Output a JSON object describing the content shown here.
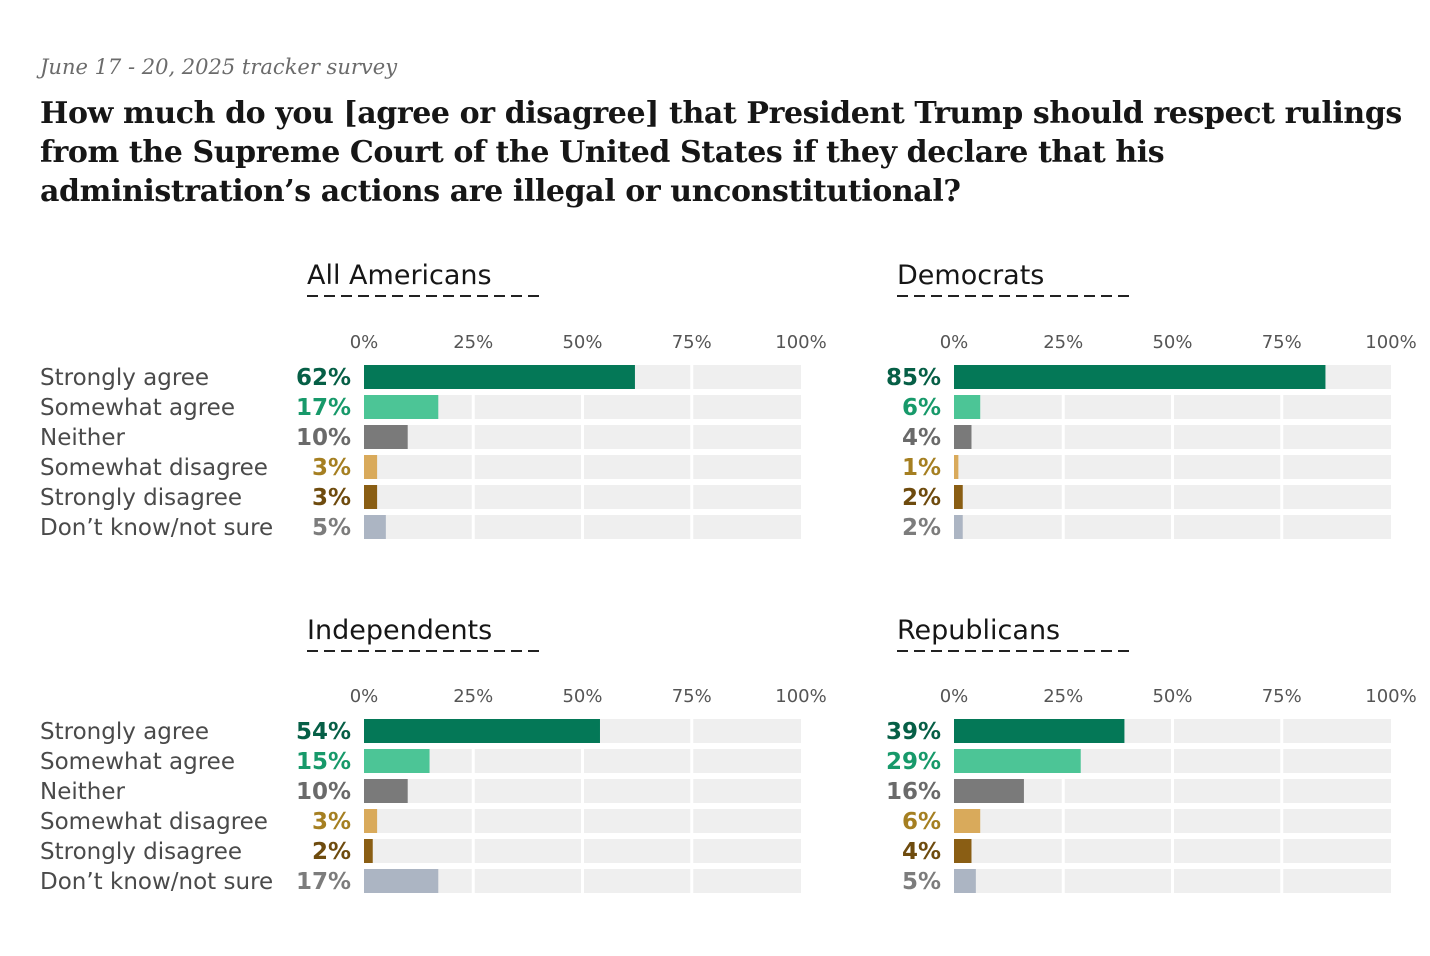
{
  "header": {
    "survey_date": "June 17 - 20, 2025 tracker survey",
    "question": "How much do you [agree or disagree] that President Trump should respect rulings from the Supreme Court of the United States if they declare that his administration’s actions are illegal or unconstitutional?"
  },
  "colors": {
    "Strongly agree": "#047857",
    "Somewhat agree": "#4cc596",
    "Neither": "#7a7a7a",
    "Somewhat disagree": "#d9aa5b",
    "Strongly disagree": "#8a5e14",
    "Don’t know/not sure": "#acb5c3",
    "track": "#efefef"
  },
  "label_colors": {
    "Strongly agree": "#065f46",
    "Somewhat agree": "#17996a",
    "Neither": "#6a6a6a",
    "Somewhat disagree": "#a57f21",
    "Strongly disagree": "#6e4b0e",
    "Don’t know/not sure": "#7c7c7c"
  },
  "chart_data": [
    {
      "type": "bar",
      "orientation": "horizontal",
      "title": "All Americans",
      "categories": [
        "Strongly agree",
        "Somewhat agree",
        "Neither",
        "Somewhat disagree",
        "Strongly disagree",
        "Don’t know/not sure"
      ],
      "values": [
        62,
        17,
        10,
        3,
        3,
        5
      ],
      "value_labels": [
        "62%",
        "17%",
        "10%",
        "3%",
        "3%",
        "5%"
      ],
      "xlim": [
        0,
        100
      ],
      "xticks": [
        "0%",
        "25%",
        "50%",
        "75%",
        "100%"
      ],
      "xtick_values": [
        0,
        25,
        50,
        75,
        100
      ],
      "grid": true
    },
    {
      "type": "bar",
      "orientation": "horizontal",
      "title": "Democrats",
      "categories": [
        "Strongly agree",
        "Somewhat agree",
        "Neither",
        "Somewhat disagree",
        "Strongly disagree",
        "Don’t know/not sure"
      ],
      "values": [
        85,
        6,
        4,
        1,
        2,
        2
      ],
      "value_labels": [
        "85%",
        "6%",
        "4%",
        "1%",
        "2%",
        "2%"
      ],
      "xlim": [
        0,
        100
      ],
      "xticks": [
        "0%",
        "25%",
        "50%",
        "75%",
        "100%"
      ],
      "xtick_values": [
        0,
        25,
        50,
        75,
        100
      ],
      "grid": true
    },
    {
      "type": "bar",
      "orientation": "horizontal",
      "title": "Independents",
      "categories": [
        "Strongly agree",
        "Somewhat agree",
        "Neither",
        "Somewhat disagree",
        "Strongly disagree",
        "Don’t know/not sure"
      ],
      "values": [
        54,
        15,
        10,
        3,
        2,
        17
      ],
      "value_labels": [
        "54%",
        "15%",
        "10%",
        "3%",
        "2%",
        "17%"
      ],
      "xlim": [
        0,
        100
      ],
      "xticks": [
        "0%",
        "25%",
        "50%",
        "75%",
        "100%"
      ],
      "xtick_values": [
        0,
        25,
        50,
        75,
        100
      ],
      "grid": true
    },
    {
      "type": "bar",
      "orientation": "horizontal",
      "title": "Republicans",
      "categories": [
        "Strongly agree",
        "Somewhat agree",
        "Neither",
        "Somewhat disagree",
        "Strongly disagree",
        "Don’t know/not sure"
      ],
      "values": [
        39,
        29,
        16,
        6,
        4,
        5
      ],
      "value_labels": [
        "39%",
        "29%",
        "16%",
        "6%",
        "4%",
        "5%"
      ],
      "xlim": [
        0,
        100
      ],
      "xticks": [
        "0%",
        "25%",
        "50%",
        "75%",
        "100%"
      ],
      "xtick_values": [
        0,
        25,
        50,
        75,
        100
      ],
      "grid": true
    }
  ]
}
